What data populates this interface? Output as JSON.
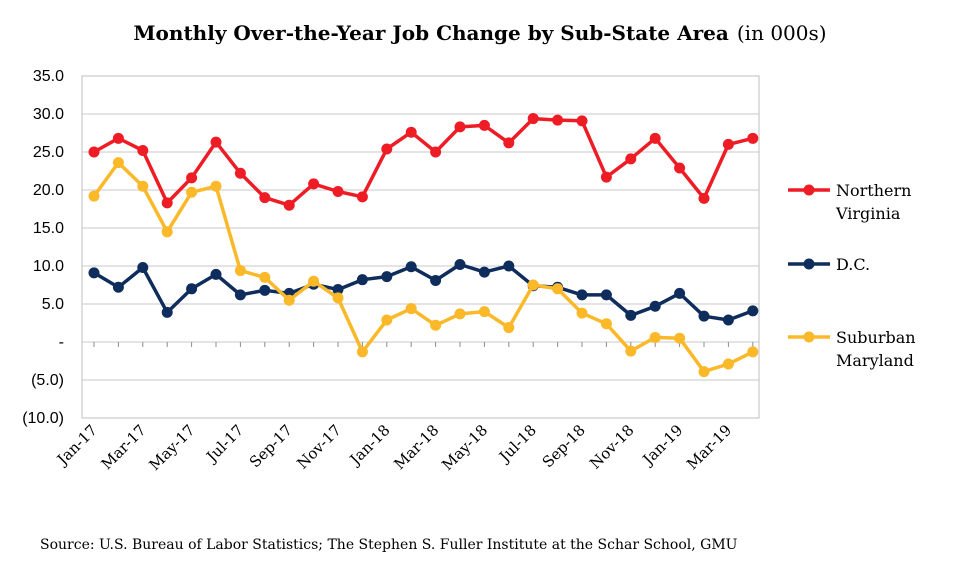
{
  "chart_data": {
    "type": "line",
    "title": "Monthly Over-the-Year Job Change by Sub-State Area",
    "title_suffix": "(in 000s)",
    "source": "Source: U.S. Bureau of Labor Statistics;  The Stephen S. Fuller Institute at the Schar School, GMU",
    "ylim": [
      -10,
      35
    ],
    "yticks": [
      {
        "value": 35,
        "label": "35.0"
      },
      {
        "value": 30,
        "label": "30.0"
      },
      {
        "value": 25,
        "label": "25.0"
      },
      {
        "value": 20,
        "label": "20.0"
      },
      {
        "value": 15,
        "label": "15.0"
      },
      {
        "value": 10,
        "label": "10.0"
      },
      {
        "value": 5,
        "label": "5.0"
      },
      {
        "value": 0,
        "label": "-"
      },
      {
        "value": -5,
        "label": "(5.0)"
      },
      {
        "value": -10,
        "label": "(10.0)"
      }
    ],
    "grid": true,
    "legend_position": "right",
    "categories": [
      "Jan-17",
      "Feb-17",
      "Mar-17",
      "Apr-17",
      "May-17",
      "Jun-17",
      "Jul-17",
      "Aug-17",
      "Sep-17",
      "Oct-17",
      "Nov-17",
      "Dec-17",
      "Jan-18",
      "Feb-18",
      "Mar-18",
      "Apr-18",
      "May-18",
      "Jun-18",
      "Jul-18",
      "Aug-18",
      "Sep-18",
      "Oct-18",
      "Nov-18",
      "Dec-18",
      "Jan-19",
      "Feb-19",
      "Mar-19",
      "Apr-19"
    ],
    "xtick_labels": [
      "Jan-17",
      "Mar-17",
      "May-17",
      "Jul-17",
      "Sep-17",
      "Nov-17",
      "Jan-18",
      "Mar-18",
      "May-18",
      "Jul-18",
      "Sep-18",
      "Nov-18",
      "Jan-19",
      "Mar-19"
    ],
    "series": [
      {
        "name": "Northern Virginia",
        "legend_lines": [
          "Northern",
          "Virginia"
        ],
        "color": "#ee1c25",
        "values": [
          25.0,
          26.8,
          25.2,
          18.3,
          21.6,
          26.3,
          22.2,
          19.0,
          18.0,
          20.8,
          19.8,
          19.1,
          25.4,
          27.6,
          25.0,
          28.3,
          28.5,
          26.2,
          29.4,
          29.2,
          29.1,
          21.7,
          24.1,
          26.8,
          22.9,
          18.9,
          26.0,
          26.8
        ]
      },
      {
        "name": "D.C.",
        "legend_lines": [
          "D.C."
        ],
        "color": "#0f2d5c",
        "values": [
          9.1,
          7.2,
          9.8,
          3.9,
          7.0,
          8.9,
          6.2,
          6.8,
          6.4,
          7.6,
          6.9,
          8.2,
          8.6,
          9.9,
          8.1,
          10.2,
          9.2,
          10.0,
          7.4,
          7.2,
          6.2,
          6.2,
          3.5,
          4.7,
          6.4,
          3.4,
          2.9,
          4.1
        ]
      },
      {
        "name": "Suburban Maryland",
        "legend_lines": [
          "Suburban",
          "Maryland"
        ],
        "color": "#fbb829",
        "values": [
          19.2,
          23.6,
          20.5,
          14.5,
          19.7,
          20.5,
          9.4,
          8.5,
          5.5,
          8.0,
          5.8,
          -1.3,
          2.9,
          4.4,
          2.2,
          3.7,
          4.0,
          1.9,
          7.5,
          7.0,
          3.8,
          2.4,
          -1.2,
          0.6,
          0.5,
          -3.9,
          -2.9,
          -1.3
        ]
      }
    ]
  }
}
